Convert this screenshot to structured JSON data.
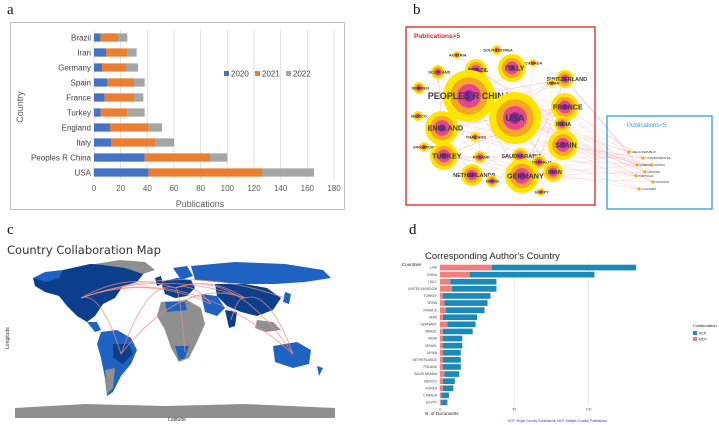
{
  "panel_labels": {
    "a": "a",
    "b": "b",
    "c": "c",
    "d": "d"
  },
  "chart_data": [
    {
      "id": "a",
      "type": "bar",
      "orientation": "horizontal",
      "stacked": true,
      "categories": [
        "USA",
        "Peoples R China",
        "Italy",
        "England",
        "Turkey",
        "France",
        "Spain",
        "Germany",
        "Iran",
        "Brazil"
      ],
      "series": [
        {
          "name": "2020",
          "color": "#4472C4",
          "values": [
            41,
            38,
            13,
            12,
            5,
            8,
            10,
            6,
            9,
            5
          ]
        },
        {
          "name": "2021",
          "color": "#ED7D31",
          "values": [
            85,
            49,
            33,
            29,
            20,
            22,
            20,
            18,
            16,
            13
          ]
        },
        {
          "name": "2022",
          "color": "#A5A5A5",
          "values": [
            39,
            13,
            14,
            10,
            13,
            7,
            8,
            9,
            7,
            7
          ]
        }
      ],
      "xlabel": "Publications",
      "ylabel": "Country",
      "xlim": [
        0,
        180
      ],
      "xticks": [
        0,
        20,
        40,
        60,
        80,
        100,
        120,
        140,
        160,
        180
      ],
      "legend": "right"
    },
    {
      "id": "d",
      "type": "bar",
      "orientation": "horizontal",
      "stacked": true,
      "title": "Corresponding Author's Country",
      "ylabel": "Countries",
      "xlabel": "N. of Documents",
      "categories": [
        "USA",
        "CHINA",
        "ITALY",
        "UNITED KINGDOM",
        "TURKEY",
        "SPAIN",
        "FRANCE",
        "IRAN",
        "GERMANY",
        "BRAZIL",
        "INDIA",
        "ISRAEL",
        "JAPAN",
        "NETHERLANDS",
        "POLAND",
        "SAUDI ARABIA",
        "MEXICO",
        "KOREA",
        "CANADA",
        "EGYPT"
      ],
      "series": [
        {
          "name": "SCP",
          "color": "#1C8AB8",
          "values": [
            97,
            84,
            31,
            30,
            32,
            29,
            26,
            23,
            19,
            20,
            13,
            13,
            12,
            12,
            12,
            10,
            8,
            7,
            5,
            4
          ]
        },
        {
          "name": "MCP",
          "color": "#F07E7B",
          "values": [
            35,
            20,
            7,
            8,
            2,
            3,
            4,
            2,
            5,
            2,
            2,
            2,
            2,
            2,
            2,
            3,
            2,
            2,
            1,
            1
          ]
        }
      ],
      "xlim": [
        0,
        140
      ],
      "xticks": [
        0,
        50,
        100
      ],
      "legend_title": "Collaboration",
      "footnote": "SCP: Single Country Publications; MCP: Multiple Country Publications"
    }
  ],
  "network": {
    "group_large_label": "Publications>5",
    "group_small_label": "Publications<5",
    "nodes_large": [
      "AUSTRIA",
      "SOUTH KOREA",
      "CANADA",
      "SCOTLAND",
      "BRAZIL",
      "ITALY",
      "SWITZERLAND",
      "JAPAN",
      "SWEDEN",
      "BELGIUM",
      "PEOPLES R CHINA",
      "FRANCE",
      "USA",
      "MEXICO",
      "INDIA",
      "ENGLAND",
      "THAILAND",
      "SPAIN",
      "SINGAPORE",
      "TURKEY",
      "POLAND",
      "SAUDI ARABIA",
      "AUSTRALIA",
      "NETHERLANDS",
      "IRAN",
      "ISRAEL",
      "GERMANY",
      "EGYPT"
    ],
    "nodes_small": [
      "CZECH REPUBLIC",
      "U ARAB EMIRATES",
      "GREECE",
      "RUSSIA",
      "UKRAINE",
      "PORTUGAL",
      "PAKISTAN",
      "COLOMBIA"
    ]
  },
  "map": {
    "title": "Country Collaboration Map",
    "ylabel": "Longitude",
    "xlabel": "Latitude"
  },
  "colors": {
    "map_high": "#0B3F8C",
    "map_mid": "#1F63C2",
    "map_gray": "#8F8F8F",
    "ocean": "#ffffff",
    "link": "#F28B82"
  }
}
